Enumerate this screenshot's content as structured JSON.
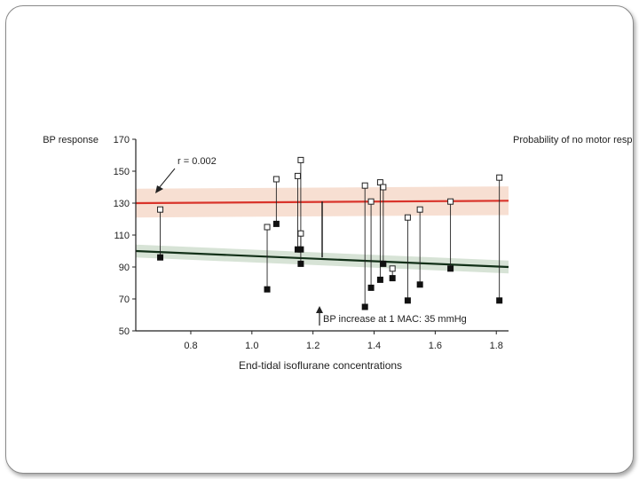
{
  "chart_data": {
    "type": "scatter",
    "ylabel": "BP response",
    "xlabel": "End-tidal isoflurane concentrations",
    "right_label": "Probability of no motor response",
    "annotations": {
      "r_value": "r = 0.002",
      "mac_note": "BP increase at 1 MAC: 35 mmHg"
    },
    "xlim": [
      0.62,
      1.84
    ],
    "ylim": [
      50,
      170
    ],
    "x_ticks": [
      "0.8",
      "1.0",
      "1.2",
      "1.4",
      "1.6",
      "1.8"
    ],
    "y_ticks": [
      "50",
      "70",
      "90",
      "110",
      "130",
      "150",
      "170"
    ],
    "pairs": [
      {
        "x": 0.7,
        "before": 96,
        "after": 126
      },
      {
        "x": 1.05,
        "before": 76,
        "after": 115
      },
      {
        "x": 1.08,
        "before": 117,
        "after": 145
      },
      {
        "x": 1.15,
        "before": 101,
        "after": 147
      },
      {
        "x": 1.16,
        "before": 92,
        "after": 157
      },
      {
        "x": 1.16,
        "before": 101,
        "after": 111
      },
      {
        "x": 1.37,
        "before": 65,
        "after": 141
      },
      {
        "x": 1.39,
        "before": 77,
        "after": 131
      },
      {
        "x": 1.42,
        "before": 82,
        "after": 143
      },
      {
        "x": 1.43,
        "before": 92,
        "after": 140
      },
      {
        "x": 1.46,
        "before": 83,
        "after": 89
      },
      {
        "x": 1.51,
        "before": 69,
        "after": 121
      },
      {
        "x": 1.55,
        "before": 79,
        "after": 126
      },
      {
        "x": 1.65,
        "before": 89,
        "after": 131
      },
      {
        "x": 1.81,
        "before": 69,
        "after": 146
      }
    ],
    "series": [
      {
        "name": "",
        "line": {
          "x": [
            0.62,
            1.84
          ],
          "y": [
            130,
            131.5
          ]
        },
        "color": "#d9342b",
        "band_color": "#f6dccd"
      },
      {
        "name": "",
        "line": {
          "x": [
            0.62,
            1.84
          ],
          "y": [
            100,
            90
          ]
        },
        "color": "#123018",
        "band_color": "#d3e0d2"
      }
    ],
    "mac_bar": {
      "x": 1.23,
      "y": [
        96,
        131
      ]
    },
    "grid": false
  }
}
